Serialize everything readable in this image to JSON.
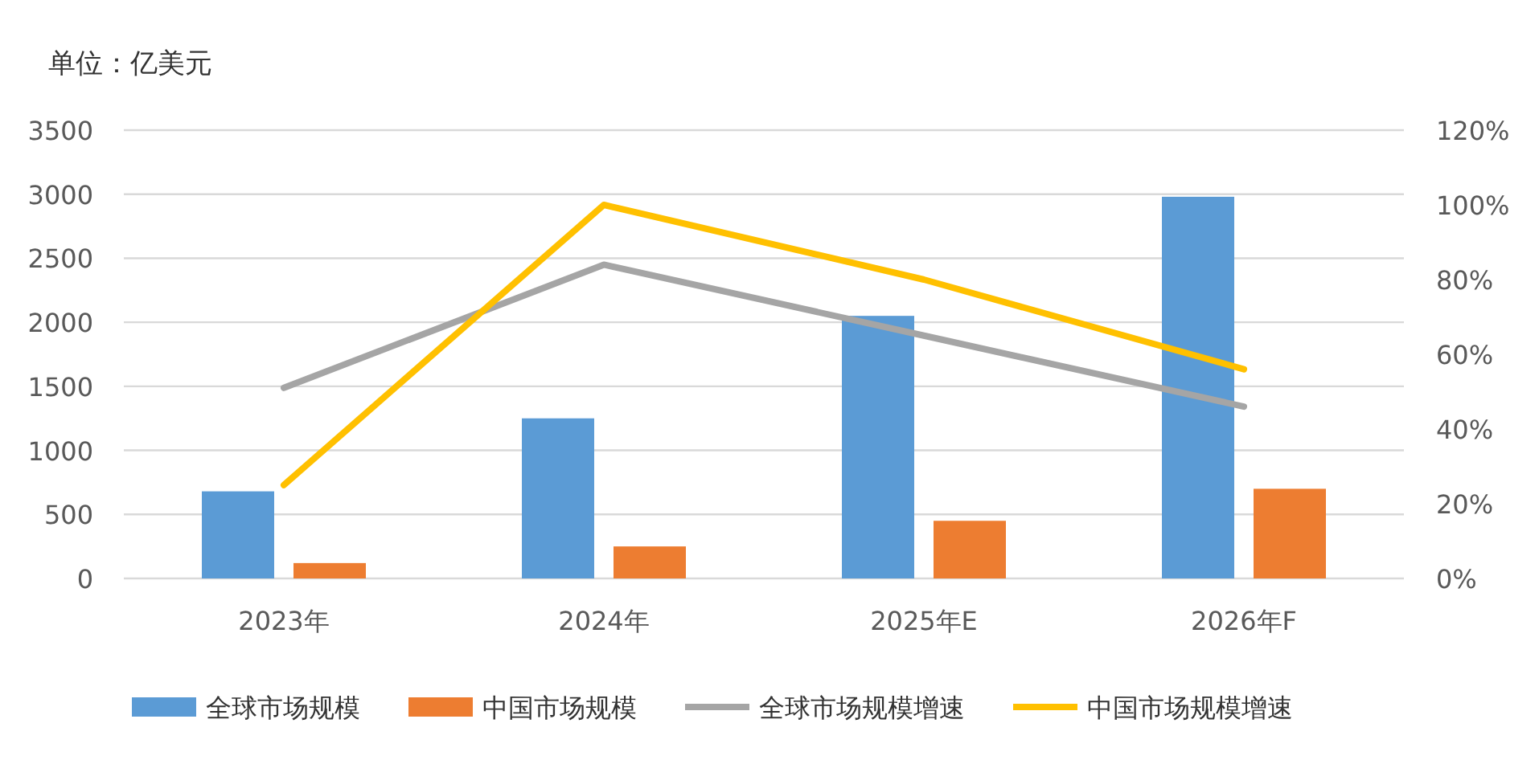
{
  "chart_data": {
    "type": "bar",
    "ylabel": "单位：亿美元",
    "categories": [
      "2023年",
      "2024年",
      "2025年E",
      "2026年F"
    ],
    "series": [
      {
        "name": "全球市场规模",
        "color": "#5b9bd5",
        "values": [
          680,
          1250,
          2050,
          2980
        ]
      },
      {
        "name": "中国市场规模",
        "color": "#ed7d31",
        "values": [
          120,
          250,
          450,
          700
        ]
      },
      {
        "name": "全球市场规模增速",
        "color": "#a5a5a5",
        "type": "line",
        "axis": "y2",
        "values": [
          51,
          84,
          65,
          46
        ]
      },
      {
        "name": "中国市场规模增速",
        "color": "#ffc000",
        "type": "line",
        "axis": "y2",
        "values": [
          25,
          100,
          80,
          56
        ]
      }
    ],
    "ylim": [
      0,
      3500
    ],
    "yticks": [
      0,
      500,
      1000,
      1500,
      2000,
      2500,
      3000,
      3500
    ],
    "y2lim": [
      0,
      120
    ],
    "y2ticks": [
      {
        "value": 0,
        "label": "0%"
      },
      {
        "value": 20,
        "label": "20%"
      },
      {
        "value": 40,
        "label": "40%"
      },
      {
        "value": 60,
        "label": "60%"
      },
      {
        "value": 80,
        "label": "80%"
      },
      {
        "value": 100,
        "label": "100%"
      },
      {
        "value": 120,
        "label": "120%"
      }
    ],
    "grid": "y",
    "legend": "bottom"
  }
}
